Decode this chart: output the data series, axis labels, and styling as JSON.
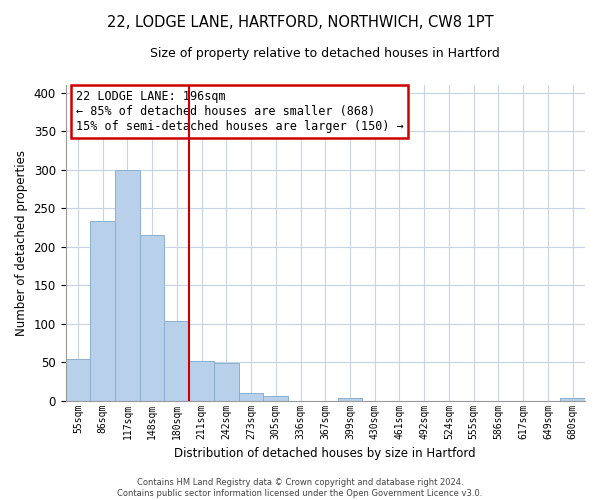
{
  "title": "22, LODGE LANE, HARTFORD, NORTHWICH, CW8 1PT",
  "subtitle": "Size of property relative to detached houses in Hartford",
  "xlabel": "Distribution of detached houses by size in Hartford",
  "ylabel": "Number of detached properties",
  "bar_color": "#b8d0ea",
  "bar_edge_color": "#8ab0d0",
  "categories": [
    "55sqm",
    "86sqm",
    "117sqm",
    "148sqm",
    "180sqm",
    "211sqm",
    "242sqm",
    "273sqm",
    "305sqm",
    "336sqm",
    "367sqm",
    "399sqm",
    "430sqm",
    "461sqm",
    "492sqm",
    "524sqm",
    "555sqm",
    "586sqm",
    "617sqm",
    "649sqm",
    "680sqm"
  ],
  "values": [
    54,
    233,
    300,
    215,
    103,
    52,
    49,
    10,
    6,
    0,
    0,
    3,
    0,
    0,
    0,
    0,
    0,
    0,
    0,
    0,
    3
  ],
  "vline_x": 4.5,
  "vline_color": "#cc0000",
  "annotation_title": "22 LODGE LANE: 196sqm",
  "annotation_line1": "← 85% of detached houses are smaller (868)",
  "annotation_line2": "15% of semi-detached houses are larger (150) →",
  "ylim": [
    0,
    410
  ],
  "yticks": [
    0,
    50,
    100,
    150,
    200,
    250,
    300,
    350,
    400
  ],
  "background_color": "#ffffff",
  "grid_color": "#c8d4e4",
  "footer1": "Contains HM Land Registry data © Crown copyright and database right 2024.",
  "footer2": "Contains public sector information licensed under the Open Government Licence v3.0."
}
